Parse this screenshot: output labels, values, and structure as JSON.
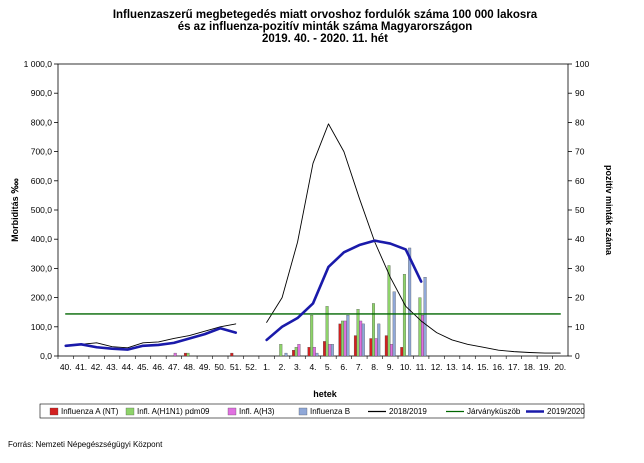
{
  "chart_data": {
    "type": "bar",
    "title_lines": [
      "Influenzaszerű megbetegedés miatt orvoshoz fordulók száma 100 000 lakosra",
      "és az influenza-pozitív minták száma Magyarországon",
      "2019. 40. - 2020. 11. hét"
    ],
    "xlabel": "hetek",
    "ylabel_left": "Morbiditás ‱",
    "ylabel_right": "pozitív minták száma",
    "ylim_left": [
      0,
      1000
    ],
    "ylim_right": [
      0,
      100
    ],
    "y_ticks_left": [
      "0,0",
      "100,0",
      "200,0",
      "300,0",
      "400,0",
      "500,0",
      "600,0",
      "700,0",
      "800,0",
      "900,0",
      "1 000,0"
    ],
    "y_ticks_right": [
      "0",
      "10",
      "20",
      "30",
      "40",
      "50",
      "60",
      "70",
      "80",
      "90",
      "100"
    ],
    "categories": [
      "40.",
      "41.",
      "42.",
      "43.",
      "44.",
      "45.",
      "46.",
      "47.",
      "48.",
      "49.",
      "50.",
      "51.",
      "52.",
      "1.",
      "2.",
      "3.",
      "4.",
      "5.",
      "6.",
      "7.",
      "8.",
      "9.",
      "10.",
      "11.",
      "12.",
      "13.",
      "14.",
      "15.",
      "16.",
      "17.",
      "18.",
      "19.",
      "20."
    ],
    "bar_series": [
      {
        "name": "Influenza A (NT)",
        "color": "#d32020",
        "values": [
          0,
          0,
          0,
          0,
          0,
          0,
          0,
          0,
          1,
          0,
          0,
          1,
          0,
          0,
          0,
          2,
          3,
          5,
          11,
          7,
          6,
          7,
          3,
          0,
          0,
          0,
          0,
          0,
          0,
          0,
          0,
          0,
          0
        ]
      },
      {
        "name": "Infl. A(H1N1) pdm09",
        "color": "#8ed36a",
        "values": [
          0,
          0,
          0,
          0,
          0,
          0,
          0,
          0,
          1,
          0,
          0,
          0,
          0,
          0,
          4,
          3,
          14,
          17,
          12,
          16,
          18,
          31,
          28,
          20,
          0,
          0,
          0,
          0,
          0,
          0,
          0,
          0,
          0
        ]
      },
      {
        "name": "Infl. A(H3)",
        "color": "#e070e0",
        "values": [
          0,
          0,
          0,
          0,
          0,
          0,
          0,
          1,
          0,
          0,
          0,
          0,
          0,
          0,
          0,
          4,
          3,
          4,
          12,
          12,
          6,
          4,
          0,
          14,
          0,
          0,
          0,
          0,
          0,
          0,
          0,
          0,
          0
        ]
      },
      {
        "name": "Influenza B",
        "color": "#90a8d8",
        "values": [
          0,
          0,
          0,
          0,
          0,
          0,
          0,
          0,
          0,
          0,
          0,
          0,
          0,
          0,
          1,
          0,
          1,
          4,
          14,
          11,
          11,
          22,
          37,
          27,
          0,
          0,
          0,
          0,
          0,
          0,
          0,
          0,
          0
        ]
      }
    ],
    "line_series": [
      {
        "name": "2018/2019",
        "color": "#000000",
        "axis": "left",
        "values": [
          null,
          null,
          null,
          null,
          null,
          null,
          null,
          null,
          null,
          null,
          null,
          null,
          null,
          115,
          200,
          390,
          660,
          795,
          700,
          540,
          390,
          270,
          170,
          120,
          80,
          55,
          40,
          30,
          20,
          15,
          12,
          10,
          10
        ]
      },
      {
        "name": "Járványküszöb",
        "color": "#006600",
        "axis": "left",
        "values": [
          144,
          144,
          144,
          144,
          144,
          144,
          144,
          144,
          144,
          144,
          144,
          144,
          144,
          144,
          144,
          144,
          144,
          144,
          144,
          144,
          144,
          144,
          144,
          144,
          144,
          144,
          144,
          144,
          144,
          144,
          144,
          144,
          144
        ]
      },
      {
        "name": "2019/2020",
        "color": "#1a1aaa",
        "axis": "left",
        "values": [
          35,
          40,
          30,
          25,
          22,
          35,
          38,
          45,
          60,
          75,
          95,
          80,
          null,
          55,
          100,
          130,
          180,
          305,
          355,
          380,
          395,
          385,
          365,
          255,
          null,
          null,
          null,
          null,
          null,
          null,
          null,
          null,
          null
        ]
      }
    ],
    "extra_black_segment": {
      "values": [
        35,
        40,
        45,
        32,
        28,
        45,
        48,
        60,
        70,
        85,
        100,
        110
      ]
    },
    "legend": [
      {
        "label": "Influenza A (NT)",
        "kind": "bar",
        "color": "#d32020"
      },
      {
        "label": "Infl. A(H1N1) pdm09",
        "kind": "bar",
        "color": "#8ed36a"
      },
      {
        "label": "Infl. A(H3)",
        "kind": "bar",
        "color": "#e070e0"
      },
      {
        "label": "Influenza B",
        "kind": "bar",
        "color": "#90a8d8"
      },
      {
        "label": "2018/2019",
        "kind": "line",
        "color": "#000000"
      },
      {
        "label": "Járványküszöb",
        "kind": "line",
        "color": "#006600"
      },
      {
        "label": "2019/2020",
        "kind": "line",
        "color": "#1a1aaa"
      }
    ],
    "legend_position": "bottom",
    "grid": false,
    "source": "Forrás: Nemzeti Népegészségügyi Központ"
  }
}
